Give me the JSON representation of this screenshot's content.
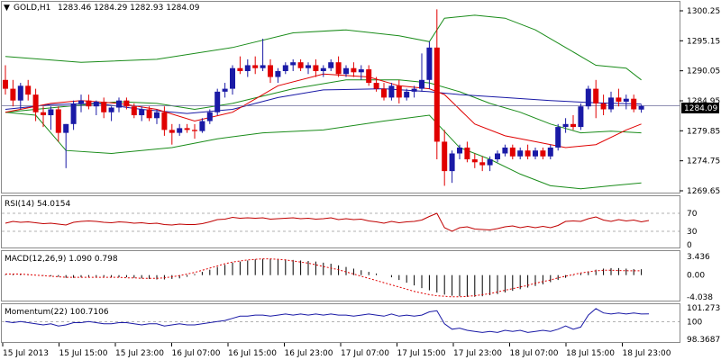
{
  "header": {
    "symbol": "GOLD,H1",
    "ohlc": "1283.46 1284.29 1282.93 1284.09"
  },
  "current_price": "1284.09",
  "panels": {
    "price": {
      "ticks": [
        "1300.25",
        "1295.15",
        "1290.05",
        "1284.95",
        "1279.85",
        "1274.75",
        "1269.65"
      ]
    },
    "rsi": {
      "label": "RSI(14) 54.0154",
      "ticks": [
        "100",
        "70",
        "30",
        "0"
      ]
    },
    "macd": {
      "label": "MACD(12,26,9) 1.090 0.798",
      "ticks": [
        "3.436",
        "0.00",
        "-4.038"
      ]
    },
    "momentum": {
      "label": "Momentum(22) 100.7106",
      "ticks": [
        "101.273",
        "100",
        "98.3687"
      ]
    }
  },
  "x_labels": [
    "15 Jul 2013",
    "15 Jul 15:00",
    "15 Jul 23:00",
    "16 Jul 07:00",
    "16 Jul 15:00",
    "16 Jul 23:00",
    "17 Jul 07:00",
    "17 Jul 15:00",
    "17 Jul 23:00",
    "18 Jul 07:00",
    "18 Jul 15:00",
    "18 Jul 23:00"
  ],
  "colors": {
    "bull": "#1a1aa6",
    "bear": "#e00000",
    "bollinger": "#1a8c1a",
    "ma_fast": "#e00000",
    "ma_slow": "#1a1aa6",
    "rsi_line": "#c00000",
    "macd_hist": "#000000",
    "macd_signal": "#e00000",
    "momentum_line": "#1a1aa6"
  },
  "chart_data": {
    "type": "candlestick",
    "symbol": "GOLD",
    "timeframe": "H1",
    "price_range": [
      1269.65,
      1300.25
    ],
    "candles": [
      {
        "o": 1288.5,
        "h": 1291.0,
        "l": 1286.0,
        "c": 1287.0
      },
      {
        "o": 1287.0,
        "h": 1288.5,
        "l": 1284.0,
        "c": 1285.0
      },
      {
        "o": 1285.0,
        "h": 1288.0,
        "l": 1283.5,
        "c": 1287.5
      },
      {
        "o": 1287.5,
        "h": 1288.5,
        "l": 1285.0,
        "c": 1286.0
      },
      {
        "o": 1286.0,
        "h": 1287.0,
        "l": 1281.5,
        "c": 1283.0
      },
      {
        "o": 1283.0,
        "h": 1284.0,
        "l": 1280.5,
        "c": 1282.5
      },
      {
        "o": 1282.5,
        "h": 1284.0,
        "l": 1280.0,
        "c": 1283.5
      },
      {
        "o": 1283.5,
        "h": 1284.0,
        "l": 1278.0,
        "c": 1279.5
      },
      {
        "o": 1279.5,
        "h": 1281.0,
        "l": 1273.5,
        "c": 1281.0
      },
      {
        "o": 1281.0,
        "h": 1285.0,
        "l": 1280.0,
        "c": 1284.5
      },
      {
        "o": 1284.5,
        "h": 1286.0,
        "l": 1283.0,
        "c": 1285.0
      },
      {
        "o": 1285.0,
        "h": 1286.0,
        "l": 1283.5,
        "c": 1284.0
      },
      {
        "o": 1284.0,
        "h": 1285.0,
        "l": 1282.5,
        "c": 1284.8
      },
      {
        "o": 1284.8,
        "h": 1285.5,
        "l": 1282.0,
        "c": 1283.0
      },
      {
        "o": 1283.0,
        "h": 1284.0,
        "l": 1281.5,
        "c": 1283.8
      },
      {
        "o": 1283.8,
        "h": 1285.5,
        "l": 1283.0,
        "c": 1285.0
      },
      {
        "o": 1285.0,
        "h": 1285.5,
        "l": 1283.5,
        "c": 1284.0
      },
      {
        "o": 1284.0,
        "h": 1284.5,
        "l": 1282.0,
        "c": 1282.5
      },
      {
        "o": 1282.5,
        "h": 1284.0,
        "l": 1281.5,
        "c": 1283.5
      },
      {
        "o": 1283.5,
        "h": 1284.0,
        "l": 1281.5,
        "c": 1282.0
      },
      {
        "o": 1282.0,
        "h": 1283.5,
        "l": 1281.0,
        "c": 1283.0
      },
      {
        "o": 1283.0,
        "h": 1284.0,
        "l": 1279.0,
        "c": 1280.0
      },
      {
        "o": 1280.0,
        "h": 1281.0,
        "l": 1277.5,
        "c": 1279.5
      },
      {
        "o": 1279.5,
        "h": 1281.0,
        "l": 1279.0,
        "c": 1280.3
      },
      {
        "o": 1280.3,
        "h": 1281.0,
        "l": 1279.5,
        "c": 1280.0
      },
      {
        "o": 1280.0,
        "h": 1281.0,
        "l": 1278.5,
        "c": 1279.8
      },
      {
        "o": 1279.8,
        "h": 1282.0,
        "l": 1279.5,
        "c": 1281.5
      },
      {
        "o": 1281.5,
        "h": 1283.5,
        "l": 1281.0,
        "c": 1283.0
      },
      {
        "o": 1283.0,
        "h": 1287.0,
        "l": 1282.5,
        "c": 1286.5
      },
      {
        "o": 1286.5,
        "h": 1288.0,
        "l": 1285.5,
        "c": 1287.0
      },
      {
        "o": 1287.0,
        "h": 1291.0,
        "l": 1286.0,
        "c": 1290.5
      },
      {
        "o": 1290.5,
        "h": 1292.5,
        "l": 1289.5,
        "c": 1290.0
      },
      {
        "o": 1290.0,
        "h": 1292.0,
        "l": 1289.0,
        "c": 1291.0
      },
      {
        "o": 1291.0,
        "h": 1292.5,
        "l": 1289.5,
        "c": 1290.5
      },
      {
        "o": 1290.5,
        "h": 1295.5,
        "l": 1290.0,
        "c": 1291.0
      },
      {
        "o": 1291.0,
        "h": 1292.0,
        "l": 1288.0,
        "c": 1289.0
      },
      {
        "o": 1289.0,
        "h": 1290.5,
        "l": 1288.0,
        "c": 1290.0
      },
      {
        "o": 1290.0,
        "h": 1291.5,
        "l": 1289.5,
        "c": 1291.0
      },
      {
        "o": 1291.0,
        "h": 1292.0,
        "l": 1290.0,
        "c": 1291.5
      },
      {
        "o": 1291.5,
        "h": 1292.0,
        "l": 1290.0,
        "c": 1290.5
      },
      {
        "o": 1290.5,
        "h": 1291.5,
        "l": 1289.5,
        "c": 1291.0
      },
      {
        "o": 1291.0,
        "h": 1292.0,
        "l": 1289.0,
        "c": 1290.0
      },
      {
        "o": 1290.0,
        "h": 1291.0,
        "l": 1289.0,
        "c": 1290.5
      },
      {
        "o": 1290.5,
        "h": 1292.0,
        "l": 1290.0,
        "c": 1291.5
      },
      {
        "o": 1291.5,
        "h": 1292.5,
        "l": 1289.0,
        "c": 1289.5
      },
      {
        "o": 1289.5,
        "h": 1291.0,
        "l": 1289.0,
        "c": 1290.5
      },
      {
        "o": 1290.5,
        "h": 1291.5,
        "l": 1289.0,
        "c": 1289.8
      },
      {
        "o": 1289.8,
        "h": 1291.0,
        "l": 1288.5,
        "c": 1290.3
      },
      {
        "o": 1290.3,
        "h": 1291.0,
        "l": 1287.5,
        "c": 1288.0
      },
      {
        "o": 1288.0,
        "h": 1289.0,
        "l": 1286.5,
        "c": 1287.0
      },
      {
        "o": 1287.0,
        "h": 1288.0,
        "l": 1285.0,
        "c": 1285.5
      },
      {
        "o": 1285.5,
        "h": 1288.0,
        "l": 1285.0,
        "c": 1287.5
      },
      {
        "o": 1287.5,
        "h": 1288.5,
        "l": 1284.5,
        "c": 1285.5
      },
      {
        "o": 1285.5,
        "h": 1287.0,
        "l": 1285.0,
        "c": 1286.5
      },
      {
        "o": 1286.5,
        "h": 1287.5,
        "l": 1285.5,
        "c": 1287.0
      },
      {
        "o": 1287.0,
        "h": 1293.0,
        "l": 1286.5,
        "c": 1288.5
      },
      {
        "o": 1288.5,
        "h": 1295.0,
        "l": 1287.0,
        "c": 1294.0
      },
      {
        "o": 1294.0,
        "h": 1300.5,
        "l": 1275.0,
        "c": 1278.0
      },
      {
        "o": 1278.0,
        "h": 1280.0,
        "l": 1270.5,
        "c": 1273.0
      },
      {
        "o": 1273.0,
        "h": 1276.5,
        "l": 1271.0,
        "c": 1276.0
      },
      {
        "o": 1276.0,
        "h": 1277.5,
        "l": 1275.0,
        "c": 1277.0
      },
      {
        "o": 1277.0,
        "h": 1278.0,
        "l": 1274.5,
        "c": 1275.0
      },
      {
        "o": 1275.0,
        "h": 1276.0,
        "l": 1273.5,
        "c": 1274.5
      },
      {
        "o": 1274.5,
        "h": 1275.5,
        "l": 1273.0,
        "c": 1274.0
      },
      {
        "o": 1274.0,
        "h": 1275.5,
        "l": 1273.0,
        "c": 1275.0
      },
      {
        "o": 1275.0,
        "h": 1276.5,
        "l": 1274.5,
        "c": 1276.0
      },
      {
        "o": 1276.0,
        "h": 1277.5,
        "l": 1275.5,
        "c": 1277.0
      },
      {
        "o": 1277.0,
        "h": 1277.5,
        "l": 1275.0,
        "c": 1275.5
      },
      {
        "o": 1275.5,
        "h": 1277.0,
        "l": 1275.0,
        "c": 1276.5
      },
      {
        "o": 1276.5,
        "h": 1277.5,
        "l": 1275.0,
        "c": 1275.5
      },
      {
        "o": 1275.5,
        "h": 1277.0,
        "l": 1275.0,
        "c": 1276.5
      },
      {
        "o": 1276.5,
        "h": 1277.0,
        "l": 1275.0,
        "c": 1275.5
      },
      {
        "o": 1275.5,
        "h": 1277.5,
        "l": 1275.0,
        "c": 1277.0
      },
      {
        "o": 1277.0,
        "h": 1281.0,
        "l": 1276.5,
        "c": 1280.5
      },
      {
        "o": 1280.5,
        "h": 1282.0,
        "l": 1279.5,
        "c": 1281.0
      },
      {
        "o": 1281.0,
        "h": 1282.5,
        "l": 1280.0,
        "c": 1280.5
      },
      {
        "o": 1280.5,
        "h": 1284.5,
        "l": 1280.0,
        "c": 1284.0
      },
      {
        "o": 1284.0,
        "h": 1287.5,
        "l": 1283.5,
        "c": 1287.0
      },
      {
        "o": 1287.0,
        "h": 1288.5,
        "l": 1282.0,
        "c": 1284.5
      },
      {
        "o": 1284.5,
        "h": 1286.0,
        "l": 1282.5,
        "c": 1283.5
      },
      {
        "o": 1283.5,
        "h": 1286.5,
        "l": 1283.0,
        "c": 1285.5
      },
      {
        "o": 1285.5,
        "h": 1287.0,
        "l": 1284.0,
        "c": 1284.8
      },
      {
        "o": 1284.8,
        "h": 1286.0,
        "l": 1283.5,
        "c": 1285.3
      },
      {
        "o": 1285.3,
        "h": 1286.0,
        "l": 1283.0,
        "c": 1283.5
      },
      {
        "o": 1283.46,
        "h": 1284.29,
        "l": 1282.93,
        "c": 1284.09
      }
    ],
    "bollinger": {
      "upper": [
        [
          0,
          1292.5
        ],
        [
          10,
          1291.5
        ],
        [
          20,
          1292.0
        ],
        [
          30,
          1294.0
        ],
        [
          38,
          1296.5
        ],
        [
          45,
          1297.0
        ],
        [
          52,
          1296.0
        ],
        [
          56,
          1295.0
        ],
        [
          58,
          1299.0
        ],
        [
          62,
          1299.5
        ],
        [
          66,
          1299.0
        ],
        [
          70,
          1297.0
        ],
        [
          74,
          1294.0
        ],
        [
          78,
          1291.0
        ],
        [
          82,
          1290.5
        ],
        [
          84,
          1288.5
        ]
      ],
      "middle": [
        [
          0,
          1283.0
        ],
        [
          8,
          1284.0
        ],
        [
          15,
          1284.8
        ],
        [
          20,
          1284.5
        ],
        [
          25,
          1283.5
        ],
        [
          30,
          1284.5
        ],
        [
          38,
          1287.0
        ],
        [
          45,
          1288.5
        ],
        [
          52,
          1288.5
        ],
        [
          56,
          1288.0
        ],
        [
          60,
          1286.5
        ],
        [
          64,
          1284.5
        ],
        [
          68,
          1283.0
        ],
        [
          72,
          1281.0
        ],
        [
          76,
          1279.5
        ],
        [
          80,
          1279.8
        ],
        [
          84,
          1279.5
        ]
      ],
      "lower": [
        [
          0,
          1283.0
        ],
        [
          4,
          1282.5
        ],
        [
          8,
          1276.5
        ],
        [
          14,
          1276.0
        ],
        [
          22,
          1277.0
        ],
        [
          28,
          1278.5
        ],
        [
          34,
          1279.5
        ],
        [
          42,
          1280.0
        ],
        [
          50,
          1281.5
        ],
        [
          56,
          1282.5
        ],
        [
          60,
          1277.0
        ],
        [
          64,
          1275.0
        ],
        [
          68,
          1272.5
        ],
        [
          72,
          1270.5
        ],
        [
          76,
          1270.0
        ],
        [
          80,
          1270.5
        ],
        [
          84,
          1271.0
        ]
      ]
    },
    "ma_fast": [
      [
        0,
        1283.0
      ],
      [
        6,
        1284.5
      ],
      [
        10,
        1285.0
      ],
      [
        15,
        1284.5
      ],
      [
        20,
        1283.5
      ],
      [
        25,
        1281.5
      ],
      [
        30,
        1283.0
      ],
      [
        36,
        1287.5
      ],
      [
        42,
        1289.5
      ],
      [
        48,
        1289.0
      ],
      [
        52,
        1287.5
      ],
      [
        56,
        1287.0
      ],
      [
        58,
        1286.0
      ],
      [
        62,
        1281.0
      ],
      [
        66,
        1279.0
      ],
      [
        70,
        1278.0
      ],
      [
        74,
        1277.0
      ],
      [
        78,
        1277.5
      ],
      [
        82,
        1280.0
      ],
      [
        84,
        1281.0
      ]
    ],
    "ma_slow": [
      [
        0,
        1283.5
      ],
      [
        6,
        1284.3
      ],
      [
        12,
        1284.5
      ],
      [
        18,
        1283.5
      ],
      [
        24,
        1282.8
      ],
      [
        30,
        1283.5
      ],
      [
        36,
        1285.5
      ],
      [
        42,
        1286.8
      ],
      [
        50,
        1287.0
      ],
      [
        56,
        1286.5
      ],
      [
        60,
        1286.0
      ],
      [
        66,
        1285.5
      ],
      [
        72,
        1285.0
      ],
      [
        78,
        1284.6
      ],
      [
        84,
        1284.4
      ]
    ],
    "rsi": {
      "range": [
        0,
        100
      ],
      "levels": [
        70,
        30
      ],
      "values": [
        48,
        52,
        50,
        51,
        49,
        47,
        48,
        46,
        44,
        50,
        52,
        53,
        52,
        50,
        49,
        51,
        50,
        48,
        49,
        47,
        48,
        45,
        44,
        46,
        45,
        45,
        47,
        51,
        56,
        57,
        61,
        59,
        60,
        59,
        60,
        57,
        58,
        59,
        60,
        58,
        59,
        57,
        58,
        60,
        56,
        58,
        56,
        57,
        53,
        51,
        48,
        52,
        49,
        51,
        52,
        55,
        63,
        70,
        38,
        30,
        38,
        40,
        35,
        34,
        33,
        36,
        40,
        42,
        38,
        41,
        38,
        41,
        38,
        43,
        52,
        53,
        52,
        58,
        62,
        55,
        52,
        56,
        53,
        55,
        51,
        54.0154
      ]
    },
    "macd": {
      "range": [
        -4.038,
        3.436
      ],
      "main": [
        0.1,
        0.2,
        0.2,
        0.1,
        0.0,
        -0.1,
        -0.2,
        -0.3,
        -0.5,
        -0.5,
        -0.4,
        -0.3,
        -0.3,
        -0.3,
        -0.4,
        -0.4,
        -0.4,
        -0.5,
        -0.6,
        -0.7,
        -0.8,
        -0.8,
        -0.7,
        -0.6,
        -0.3,
        0.2,
        0.6,
        1.0,
        1.5,
        1.9,
        2.3,
        2.5,
        2.7,
        2.9,
        3.0,
        3.0,
        3.0,
        2.9,
        2.8,
        2.7,
        2.6,
        2.5,
        2.3,
        2.1,
        1.8,
        1.5,
        1.2,
        0.9,
        0.6,
        0.3,
        0.0,
        -0.4,
        -0.9,
        -1.4,
        -1.9,
        -2.4,
        -2.8,
        -3.2,
        -3.6,
        -3.8,
        -3.9,
        -4.0,
        -4.0,
        -3.9,
        -3.7,
        -3.5,
        -3.2,
        -2.9,
        -2.6,
        -2.3,
        -2.0,
        -1.7,
        -1.3,
        -0.9,
        -0.5,
        -0.1,
        0.3,
        0.7,
        1.0,
        1.2,
        1.3,
        1.3,
        1.2,
        1.1,
        1.09
      ],
      "signal": [
        0.2,
        0.2,
        0.2,
        0.1,
        0.0,
        -0.1,
        -0.2,
        -0.3,
        -0.4,
        -0.4,
        -0.4,
        -0.4,
        -0.4,
        -0.4,
        -0.4,
        -0.4,
        -0.5,
        -0.5,
        -0.6,
        -0.6,
        -0.6,
        -0.5,
        -0.3,
        -0.1,
        0.2,
        0.5,
        0.9,
        1.3,
        1.7,
        2.1,
        2.4,
        2.6,
        2.8,
        2.9,
        3.0,
        3.0,
        2.9,
        2.8,
        2.6,
        2.4,
        2.2,
        1.9,
        1.6,
        1.3,
        1.0,
        0.6,
        0.2,
        -0.2,
        -0.6,
        -1.0,
        -1.4,
        -1.8,
        -2.2,
        -2.6,
        -3.0,
        -3.3,
        -3.6,
        -3.8,
        -3.9,
        -4.0,
        -4.0,
        -3.9,
        -3.8,
        -3.6,
        -3.4,
        -3.1,
        -2.8,
        -2.5,
        -2.2,
        -1.9,
        -1.5,
        -1.2,
        -0.9,
        -0.5,
        -0.2,
        0.1,
        0.4,
        0.6,
        0.8,
        0.9,
        0.9,
        0.85,
        0.82,
        0.8,
        0.798
      ]
    },
    "momentum": {
      "range": [
        98.3687,
        101.273
      ],
      "reference": 100,
      "values": [
        100.0,
        99.9,
        100.0,
        99.9,
        99.8,
        99.7,
        99.8,
        99.6,
        99.7,
        99.9,
        99.9,
        100.0,
        99.9,
        99.8,
        99.8,
        99.9,
        99.9,
        99.8,
        99.7,
        99.8,
        99.8,
        99.6,
        99.7,
        99.8,
        99.7,
        99.7,
        99.8,
        99.9,
        100.0,
        100.1,
        100.3,
        100.5,
        100.5,
        100.6,
        100.6,
        100.5,
        100.6,
        100.7,
        100.6,
        100.7,
        100.6,
        100.7,
        100.6,
        100.7,
        100.6,
        100.6,
        100.5,
        100.6,
        100.7,
        100.6,
        100.5,
        100.7,
        100.5,
        100.6,
        100.5,
        100.6,
        100.9,
        101.0,
        99.8,
        99.3,
        99.4,
        99.2,
        99.1,
        99.0,
        99.1,
        99.0,
        99.2,
        99.1,
        99.2,
        99.0,
        99.1,
        99.2,
        99.1,
        99.3,
        99.6,
        99.3,
        99.5,
        100.6,
        101.2,
        100.8,
        100.7,
        100.8,
        100.7,
        100.8,
        100.7,
        100.7106
      ]
    }
  }
}
